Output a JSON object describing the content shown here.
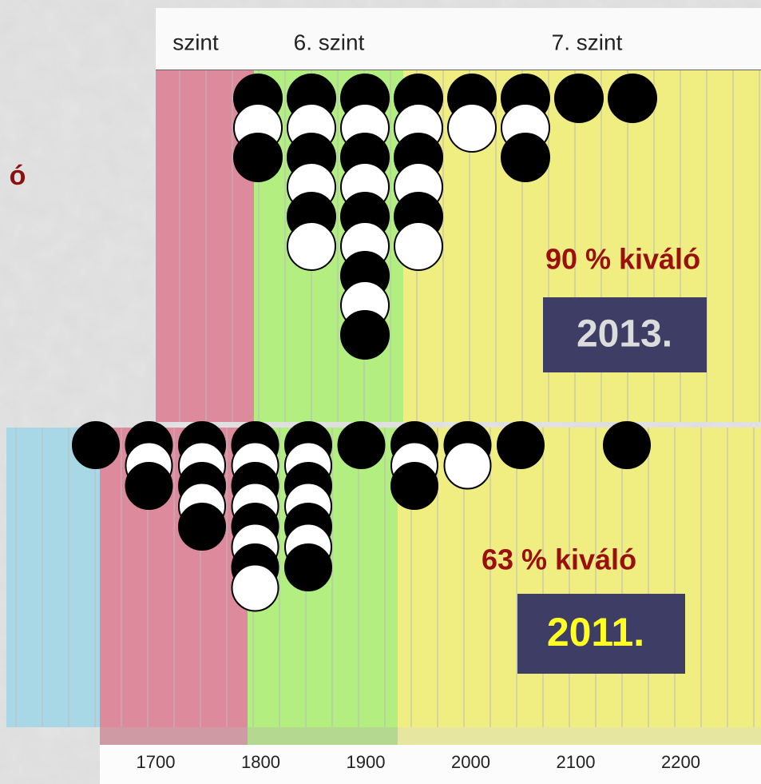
{
  "side_text": "ó",
  "panels": [
    {
      "header": [
        "szint",
        "6. szint",
        "7. szint"
      ],
      "result": "90 % kiváló",
      "year": "2013.",
      "dot_counts": [
        3,
        6,
        9,
        6,
        2,
        3,
        1,
        1
      ]
    },
    {
      "result": "63 % kiváló",
      "year": "2011.",
      "dot_counts": [
        1,
        3,
        5,
        8,
        7,
        1,
        3,
        2,
        1,
        0,
        1
      ]
    }
  ],
  "axis_labels": [
    "1700",
    "1800",
    "1900",
    "2000",
    "2100",
    "2200"
  ]
}
